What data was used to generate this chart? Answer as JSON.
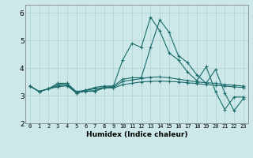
{
  "x": [
    0,
    1,
    2,
    3,
    4,
    5,
    6,
    7,
    8,
    9,
    10,
    11,
    12,
    13,
    14,
    15,
    16,
    17,
    18,
    19,
    20,
    21,
    22,
    23
  ],
  "line1": [
    3.35,
    3.15,
    3.25,
    3.45,
    3.45,
    3.15,
    3.2,
    3.3,
    3.35,
    3.35,
    4.3,
    4.9,
    4.75,
    5.85,
    5.35,
    4.55,
    4.3,
    3.85,
    3.55,
    4.05,
    3.15,
    2.5,
    2.95,
    2.95
  ],
  "line2": [
    3.35,
    3.15,
    3.25,
    3.4,
    3.45,
    3.1,
    3.2,
    3.25,
    3.3,
    3.35,
    3.6,
    3.65,
    3.65,
    4.75,
    5.75,
    5.3,
    4.45,
    4.2,
    3.75,
    3.45,
    3.95,
    3.1,
    2.45,
    2.9
  ],
  "line3": [
    3.35,
    3.15,
    3.25,
    3.35,
    3.4,
    3.1,
    3.18,
    3.18,
    3.3,
    3.3,
    3.52,
    3.57,
    3.62,
    3.67,
    3.68,
    3.65,
    3.6,
    3.55,
    3.5,
    3.47,
    3.45,
    3.4,
    3.38,
    3.35
  ],
  "line4": [
    3.35,
    3.15,
    3.25,
    3.32,
    3.36,
    3.1,
    3.16,
    3.16,
    3.28,
    3.28,
    3.4,
    3.45,
    3.5,
    3.52,
    3.53,
    3.52,
    3.5,
    3.47,
    3.44,
    3.4,
    3.38,
    3.35,
    3.32,
    3.3
  ],
  "line_color": "#1a6b6b",
  "bg_color": "#cce8e8",
  "grid_color": "#b0d0d0",
  "xlabel": "Humidex (Indice chaleur)",
  "ylim": [
    2,
    6.3
  ],
  "xlim": [
    -0.5,
    23.5
  ],
  "yticks": [
    2,
    3,
    4,
    5,
    6
  ],
  "xticks": [
    0,
    1,
    2,
    3,
    4,
    5,
    6,
    7,
    8,
    9,
    10,
    11,
    12,
    13,
    14,
    15,
    16,
    17,
    18,
    19,
    20,
    21,
    22,
    23
  ]
}
